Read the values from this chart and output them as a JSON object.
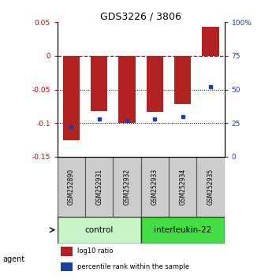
{
  "title": "GDS3226 / 3806",
  "samples": [
    "GSM252890",
    "GSM252931",
    "GSM252932",
    "GSM252933",
    "GSM252934",
    "GSM252935"
  ],
  "log10_ratio": [
    -0.125,
    -0.082,
    -0.1,
    -0.083,
    -0.072,
    0.043
  ],
  "percentile_rank": [
    22,
    28,
    27,
    28,
    30,
    52
  ],
  "ylim_left": [
    -0.15,
    0.05
  ],
  "ylim_right": [
    0,
    100
  ],
  "yticks_left": [
    -0.15,
    -0.1,
    -0.05,
    0.0,
    0.05
  ],
  "ytick_labels_left": [
    "-0.15",
    "-0.1",
    "-0.05",
    "0",
    "0.05"
  ],
  "yticks_right": [
    0,
    25,
    50,
    75,
    100
  ],
  "ytick_labels_right": [
    "0",
    "25",
    "50",
    "75",
    "100%"
  ],
  "hlines": [
    -0.05,
    -0.1
  ],
  "bar_color": "#b22222",
  "dot_color": "#1a3faa",
  "dashed_line_color": "#cc0000",
  "control_samples": [
    "GSM252890",
    "GSM252931",
    "GSM252932"
  ],
  "treatment_samples": [
    "GSM252933",
    "GSM252934",
    "GSM252935"
  ],
  "control_label": "control",
  "treatment_label": "interleukin-22",
  "agent_label": "agent",
  "control_color": "#c8f5c8",
  "treatment_color": "#44dd44",
  "legend_ratio_label": "log10 ratio",
  "legend_pct_label": "percentile rank within the sample",
  "bar_width": 0.6
}
